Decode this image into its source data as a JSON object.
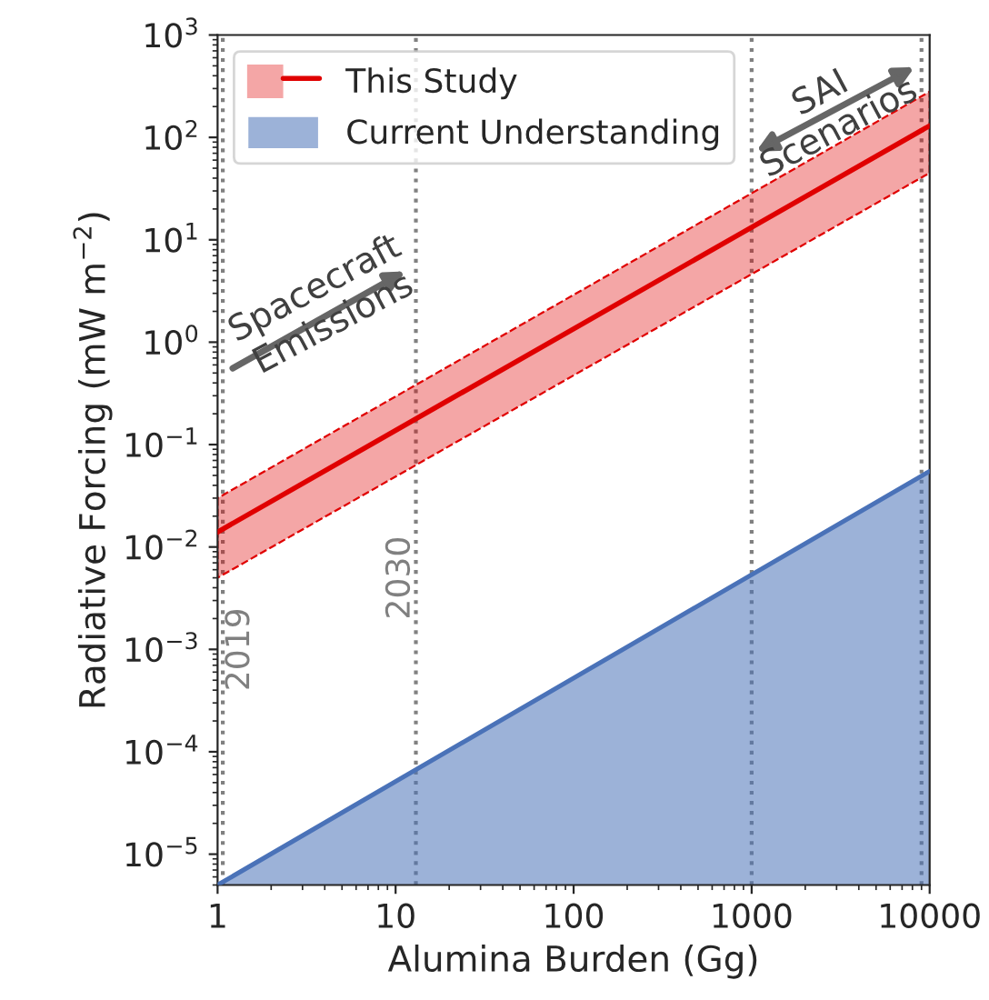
{
  "chart_data": {
    "type": "line",
    "xlabel": "Alumina Burden (Gg)",
    "ylabel": "Radiative Forcing (mW m$^{−2}$)",
    "x": [
      1,
      10000
    ],
    "series": [
      {
        "name": "This Study",
        "color": "#e00000",
        "values": [
          0.014,
          130
        ],
        "lower": [
          0.005,
          45
        ],
        "upper": [
          0.03,
          280
        ]
      },
      {
        "name": "Current Understanding",
        "type": "area",
        "color": "#4a72b8",
        "values": [
          5e-06,
          0.055
        ]
      }
    ],
    "log": "xy",
    "xlim": [
      1,
      10000
    ],
    "ylim": [
      5e-06,
      1000
    ],
    "xticks": [
      1,
      10,
      100,
      1000,
      10000
    ],
    "yticks": [
      {
        "value": 1e-05,
        "label": "10$^{−5}$"
      },
      {
        "value": 0.0001,
        "label": "10$^{−4}$"
      },
      {
        "value": 0.001,
        "label": "10$^{−3}$"
      },
      {
        "value": 0.01,
        "label": "10$^{−2}$"
      },
      {
        "value": 0.1,
        "label": "10$^{−1}$"
      },
      {
        "value": 1,
        "label": "10$^{0}$"
      },
      {
        "value": 10,
        "label": "10$^{1}$"
      },
      {
        "value": 100,
        "label": "10$^{2}$"
      },
      {
        "value": 1000,
        "label": "10$^{3}$"
      }
    ],
    "ref_lines": [
      {
        "axis": "x",
        "value": 1.07,
        "label": null,
        "color": "#808080",
        "line_style": "dotted"
      },
      {
        "axis": "x",
        "value": 13,
        "label": null,
        "color": "#808080",
        "line_style": "dotted"
      },
      {
        "axis": "x",
        "value": 1000,
        "label": null,
        "color": "#808080",
        "line_style": "dotted"
      },
      {
        "axis": "x",
        "value": 9000,
        "label": null,
        "color": "#808080",
        "line_style": "dotted"
      }
    ],
    "annotations": [
      "Spacecraft\nEmissions",
      "SAI\nScenarios",
      {
        "text": "2019",
        "x": 1.07,
        "y": 0.001
      },
      {
        "text": "2030",
        "x": 13,
        "y": 0.005
      }
    ],
    "legend": "top left",
    "grid": false
  }
}
